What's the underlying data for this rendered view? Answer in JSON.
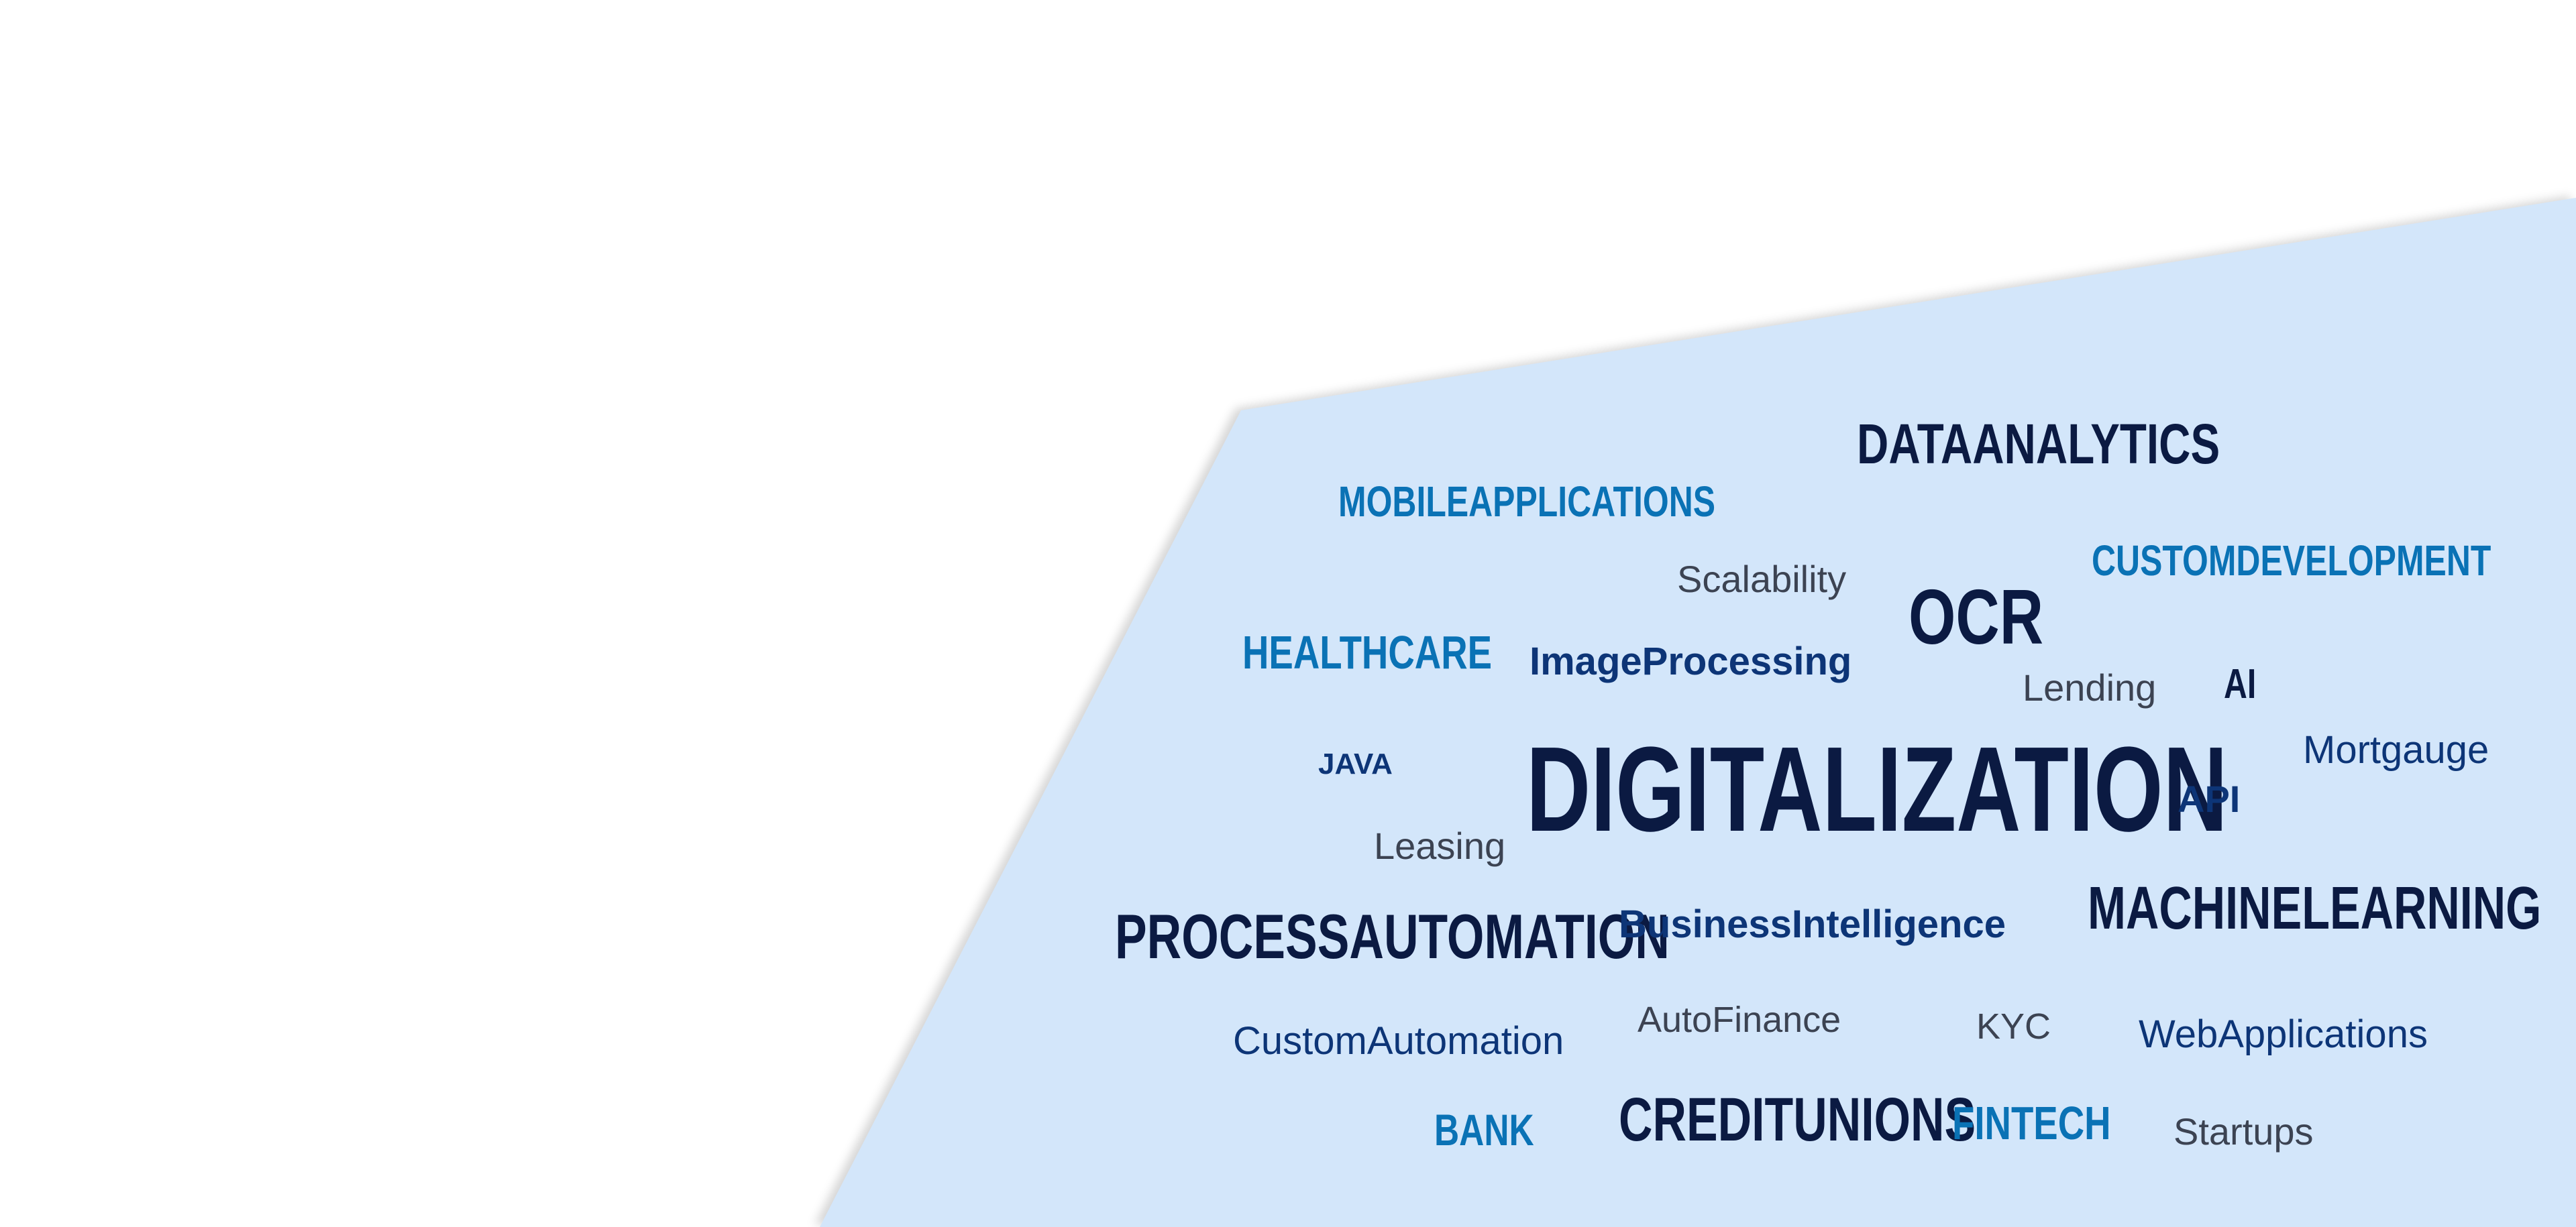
{
  "colors": {
    "background": "#ffffff",
    "panel": "#d3e6fa",
    "navy": "#0b1a42",
    "dark_blue": "#0d3577",
    "medium_blue": "#0a72b5",
    "gray": "#3c4352"
  },
  "words": {
    "dataanalytics": "DATAANALYTICS",
    "mobileapplications": "MOBILEAPPLICATIONS",
    "scalability": "Scalability",
    "ocr": "OCR",
    "customdevelopment": "CUSTOMDEVELOPMENT",
    "healthcare": "HEALTHCARE",
    "imageprocessing": "ImageProcessing",
    "lending": "Lending",
    "ai": "AI",
    "java": "JAVA",
    "digitalization": "DIGITALIZATION",
    "mortgauge": "Mortgauge",
    "api": "API",
    "leasing": "Leasing",
    "processautomation": "PROCESSAUTOMATION",
    "businessintelligence": "BusinessIntelligence",
    "machinelearning": "MACHINELEARNING",
    "customautomation": "CustomAutomation",
    "autofinance": "AutoFinance",
    "kyc": "KYC",
    "webapplications": "WebApplications",
    "bank": "BANK",
    "creditunions": "CREDITUNIONS",
    "fintech": "FINTECH",
    "startups": "Startups"
  }
}
